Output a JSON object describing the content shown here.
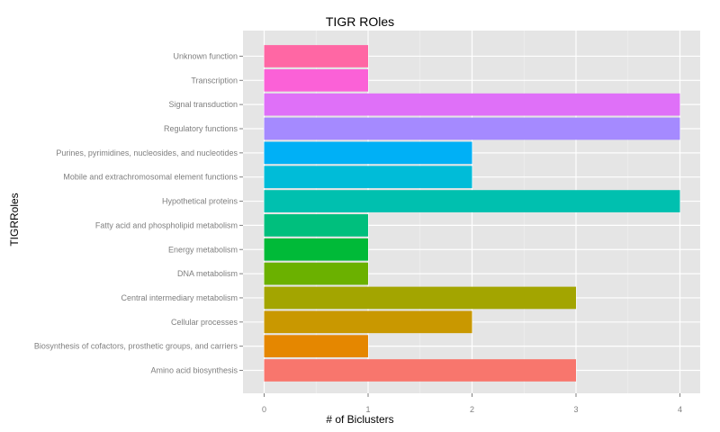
{
  "chart_data": {
    "type": "bar",
    "orientation": "horizontal",
    "title": "TIGR ROles",
    "xlabel": "# of Biclusters",
    "ylabel": "TIGRRoles",
    "xlim": [
      0,
      4
    ],
    "x_ticks": [
      "0",
      "1",
      "2",
      "3",
      "4"
    ],
    "grid": true,
    "background": "#e5e5e5",
    "categories": [
      "Amino acid biosynthesis",
      "Biosynthesis of cofactors, prosthetic groups, and carriers",
      "Cellular processes",
      "Central intermediary metabolism",
      "DNA metabolism",
      "Energy metabolism",
      "Fatty acid and phospholipid metabolism",
      "Hypothetical proteins",
      "Mobile and extrachromosomal element functions",
      "Purines, pyrimidines, nucleosides, and nucleotides",
      "Regulatory functions",
      "Signal transduction",
      "Transcription",
      "Unknown function"
    ],
    "values": [
      3,
      1,
      2,
      3,
      1,
      1,
      1,
      4,
      2,
      2,
      4,
      4,
      1,
      1
    ],
    "colors": [
      "#f8766d",
      "#e58700",
      "#c99800",
      "#a3a500",
      "#6bb100",
      "#00ba38",
      "#00bf7d",
      "#00c0af",
      "#00bcd8",
      "#00b0f6",
      "#a58aff",
      "#df70f8",
      "#fb61d7",
      "#ff67a4"
    ]
  }
}
